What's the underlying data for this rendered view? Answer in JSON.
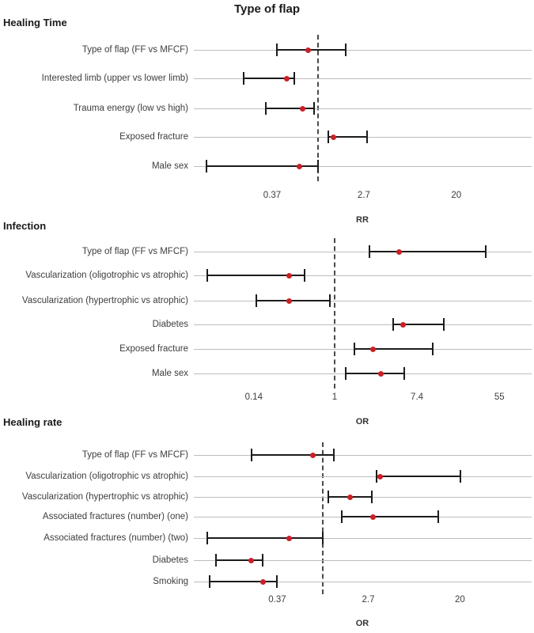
{
  "title": "Type of flap",
  "colors": {
    "point": "#cb2027",
    "ci_line": "#1c1c1c",
    "leader_line": "#bdbdbd",
    "reference_line": "#4a4a4a",
    "text": "#3d3d3d",
    "heading_text": "#1a1a1a",
    "background": "#ffffff"
  },
  "chart_data": [
    {
      "type": "scatter",
      "subtype": "forest-plot",
      "heading": "Healing Time",
      "effect_measure": "RR",
      "x_scale": "log10",
      "ref_line_value": 1,
      "xlim": [
        0.068,
        102
      ],
      "grid": "off",
      "ticks": [
        {
          "label": "0.37",
          "value": 0.37
        },
        {
          "label": "2.7",
          "value": 2.7
        },
        {
          "label": "20",
          "value": 20
        }
      ],
      "rows": [
        {
          "label": "Type of flap (FF vs MFCF)",
          "estimate": 0.81,
          "ci_low": 0.41,
          "ci_high": 1.82
        },
        {
          "label": "Interested limb (upper vs lower limb)",
          "estimate": 0.51,
          "ci_low": 0.2,
          "ci_high": 0.6
        },
        {
          "label": "Trauma energy (low vs high)",
          "estimate": 0.71,
          "ci_low": 0.32,
          "ci_high": 0.92
        },
        {
          "label": "Exposed fracture",
          "estimate": 1.39,
          "ci_low": 1.25,
          "ci_high": 2.9
        },
        {
          "label": "Male sex",
          "estimate": 0.67,
          "ci_low": 0.089,
          "ci_high": 1.0
        }
      ]
    },
    {
      "type": "scatter",
      "subtype": "forest-plot",
      "heading": "Infection",
      "effect_measure": "OR",
      "x_scale": "log10",
      "ref_line_value": 1,
      "xlim": [
        0.033,
        120
      ],
      "grid": "off",
      "ticks": [
        {
          "label": "0.14",
          "value": 0.14
        },
        {
          "label": "1",
          "value": 1
        },
        {
          "label": "7.4",
          "value": 7.4
        },
        {
          "label": "55",
          "value": 55
        }
      ],
      "rows": [
        {
          "label": "Type of flap (FF vs MFCF)",
          "estimate": 4.84,
          "ci_low": 2.33,
          "ci_high": 39.4
        },
        {
          "label": "Vascularization (oligotrophic vs atrophic)",
          "estimate": 0.33,
          "ci_low": 0.045,
          "ci_high": 0.48
        },
        {
          "label": "Vascularization (hypertrophic vs atrophic)",
          "estimate": 0.33,
          "ci_low": 0.15,
          "ci_high": 0.89
        },
        {
          "label": "Diabetes",
          "estimate": 5.33,
          "ci_low": 4.15,
          "ci_high": 14.2
        },
        {
          "label": "Exposed fracture",
          "estimate": 2.52,
          "ci_low": 1.62,
          "ci_high": 10.9
        },
        {
          "label": "Male sex",
          "estimate": 3.11,
          "ci_low": 1.31,
          "ci_high": 5.43
        }
      ]
    },
    {
      "type": "scatter",
      "subtype": "forest-plot",
      "heading": "Healing rate",
      "effect_measure": "OR",
      "x_scale": "log10",
      "ref_line_value": 1,
      "xlim": [
        0.06,
        95
      ],
      "grid": "off",
      "ticks": [
        {
          "label": "0.37",
          "value": 0.37
        },
        {
          "label": "2.7",
          "value": 2.7
        },
        {
          "label": "20",
          "value": 20
        }
      ],
      "rows": [
        {
          "label": "Type of flap (FF vs MFCF)",
          "estimate": 0.8,
          "ci_low": 0.21,
          "ci_high": 1.27
        },
        {
          "label": "Vascularization (oligotrophic vs atrophic)",
          "estimate": 3.47,
          "ci_low": 3.24,
          "ci_high": 20.2
        },
        {
          "label": "Vascularization (hypertrophic vs atrophic)",
          "estimate": 1.83,
          "ci_low": 1.13,
          "ci_high": 2.92
        },
        {
          "label": "Associated fractures (number) (one)",
          "estimate": 3.02,
          "ci_low": 1.51,
          "ci_high": 12.45
        },
        {
          "label": "Associated fractures (number) (two)",
          "estimate": 0.48,
          "ci_low": 0.08,
          "ci_high": 1.0
        },
        {
          "label": "Diabetes",
          "estimate": 0.21,
          "ci_low": 0.097,
          "ci_high": 0.27
        },
        {
          "label": "Smoking",
          "estimate": 0.27,
          "ci_low": 0.085,
          "ci_high": 0.37
        }
      ]
    }
  ]
}
